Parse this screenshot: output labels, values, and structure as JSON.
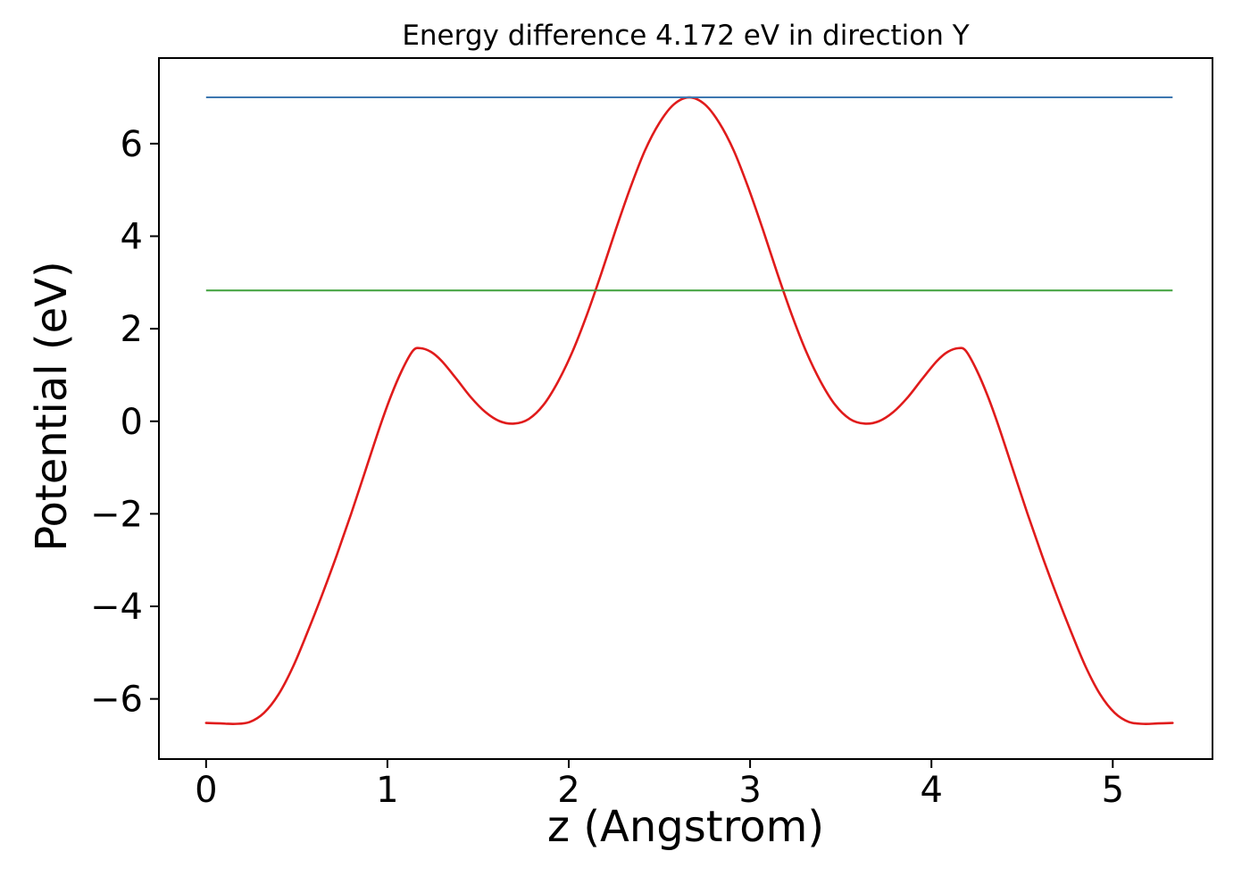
{
  "chart_data": {
    "type": "line",
    "title": "Energy difference 4.172 eV in direction Y",
    "xlabel": "z (Angstrom)",
    "ylabel": "Potential (eV)",
    "energy_difference_eV": 4.172,
    "xlim": [
      -0.26,
      5.55
    ],
    "ylim": [
      -7.3,
      7.85
    ],
    "xticks": [
      0,
      1,
      2,
      3,
      4,
      5
    ],
    "xtick_labels": [
      "0",
      "1",
      "2",
      "3",
      "4",
      "5"
    ],
    "yticks": [
      -6,
      -4,
      -2,
      0,
      2,
      4,
      6
    ],
    "ytick_labels": [
      "−6",
      "−4",
      "−2",
      "0",
      "2",
      "4",
      "6"
    ],
    "grid": false,
    "legend": "none",
    "colors": {
      "axes": "#000000"
    },
    "series": [
      {
        "name": "potential-curve",
        "kind": "curve",
        "color": "#e01b1b",
        "width": 2.6,
        "points": [
          [
            0.0,
            -6.52
          ],
          [
            0.08,
            -6.53
          ],
          [
            0.16,
            -6.54
          ],
          [
            0.24,
            -6.5
          ],
          [
            0.32,
            -6.3
          ],
          [
            0.4,
            -5.9
          ],
          [
            0.48,
            -5.3
          ],
          [
            0.56,
            -4.55
          ],
          [
            0.64,
            -3.75
          ],
          [
            0.72,
            -2.9
          ],
          [
            0.8,
            -2.0
          ],
          [
            0.88,
            -1.05
          ],
          [
            0.96,
            -0.1
          ],
          [
            1.02,
            0.55
          ],
          [
            1.08,
            1.1
          ],
          [
            1.14,
            1.52
          ],
          [
            1.18,
            1.58
          ],
          [
            1.24,
            1.5
          ],
          [
            1.3,
            1.3
          ],
          [
            1.38,
            0.92
          ],
          [
            1.46,
            0.52
          ],
          [
            1.54,
            0.2
          ],
          [
            1.62,
            0.0
          ],
          [
            1.7,
            -0.05
          ],
          [
            1.78,
            0.05
          ],
          [
            1.86,
            0.35
          ],
          [
            1.94,
            0.85
          ],
          [
            2.02,
            1.5
          ],
          [
            2.1,
            2.3
          ],
          [
            2.18,
            3.2
          ],
          [
            2.26,
            4.15
          ],
          [
            2.34,
            5.05
          ],
          [
            2.42,
            5.85
          ],
          [
            2.5,
            6.45
          ],
          [
            2.58,
            6.85
          ],
          [
            2.665,
            7.0
          ],
          [
            2.75,
            6.85
          ],
          [
            2.83,
            6.45
          ],
          [
            2.91,
            5.85
          ],
          [
            2.99,
            5.05
          ],
          [
            3.07,
            4.15
          ],
          [
            3.15,
            3.2
          ],
          [
            3.23,
            2.3
          ],
          [
            3.31,
            1.5
          ],
          [
            3.39,
            0.85
          ],
          [
            3.47,
            0.35
          ],
          [
            3.55,
            0.05
          ],
          [
            3.63,
            -0.05
          ],
          [
            3.71,
            0.0
          ],
          [
            3.79,
            0.2
          ],
          [
            3.87,
            0.52
          ],
          [
            3.95,
            0.92
          ],
          [
            4.03,
            1.3
          ],
          [
            4.09,
            1.5
          ],
          [
            4.15,
            1.58
          ],
          [
            4.19,
            1.52
          ],
          [
            4.25,
            1.1
          ],
          [
            4.31,
            0.55
          ],
          [
            4.37,
            -0.1
          ],
          [
            4.45,
            -1.05
          ],
          [
            4.53,
            -2.0
          ],
          [
            4.61,
            -2.9
          ],
          [
            4.69,
            -3.75
          ],
          [
            4.77,
            -4.55
          ],
          [
            4.85,
            -5.3
          ],
          [
            4.93,
            -5.9
          ],
          [
            5.01,
            -6.3
          ],
          [
            5.09,
            -6.5
          ],
          [
            5.17,
            -6.54
          ],
          [
            5.25,
            -6.53
          ],
          [
            5.33,
            -6.52
          ]
        ]
      },
      {
        "name": "max-potential-line",
        "kind": "hline",
        "color": "#3d77b0",
        "width": 2,
        "y": 7.0,
        "xspan": [
          0.0,
          5.33
        ]
      },
      {
        "name": "reference-potential-line",
        "kind": "hline",
        "color": "#3fa03c",
        "width": 2,
        "y": 2.828,
        "xspan": [
          0.0,
          5.33
        ]
      }
    ]
  }
}
